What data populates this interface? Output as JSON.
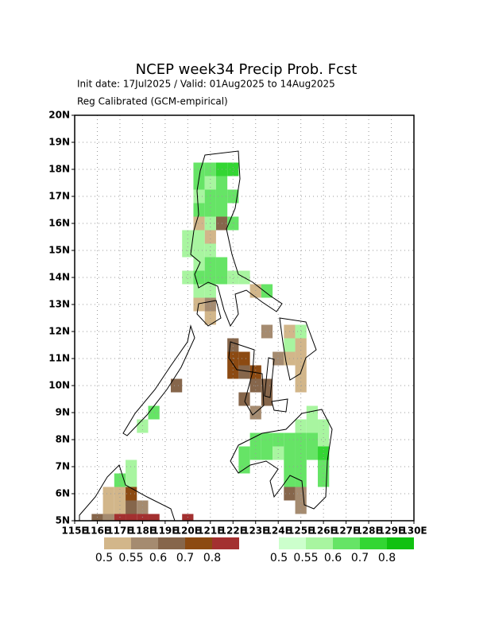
{
  "chart_data": {
    "type": "grid-map",
    "title": "NCEP week34 Precip Prob. Fcst",
    "subtitle": "Init date: 17Jul2025 / Valid: 01Aug2025 to 14Aug2025",
    "note": "Reg Calibrated (GCM-empirical)",
    "xlim": [
      115,
      130
    ],
    "ylim": [
      5,
      20
    ],
    "xticks": [
      {
        "value": 115,
        "label": "115E"
      },
      {
        "value": 116,
        "label": "116E"
      },
      {
        "value": 117,
        "label": "117E"
      },
      {
        "value": 118,
        "label": "118E"
      },
      {
        "value": 119,
        "label": "119E"
      },
      {
        "value": 120,
        "label": "120E"
      },
      {
        "value": 121,
        "label": "121E"
      },
      {
        "value": 122,
        "label": "122E"
      },
      {
        "value": 123,
        "label": "123E"
      },
      {
        "value": 124,
        "label": "124E"
      },
      {
        "value": 125,
        "label": "125E"
      },
      {
        "value": 126,
        "label": "126E"
      },
      {
        "value": 127,
        "label": "127E"
      },
      {
        "value": 128,
        "label": "128E"
      },
      {
        "value": 129,
        "label": "129E"
      },
      {
        "value": 130,
        "label": "130E"
      }
    ],
    "yticks": [
      {
        "value": 5,
        "label": "5N"
      },
      {
        "value": 6,
        "label": "6N"
      },
      {
        "value": 7,
        "label": "7N"
      },
      {
        "value": 8,
        "label": "8N"
      },
      {
        "value": 9,
        "label": "9N"
      },
      {
        "value": 10,
        "label": "10N"
      },
      {
        "value": 11,
        "label": "11N"
      },
      {
        "value": 12,
        "label": "12N"
      },
      {
        "value": 13,
        "label": "13N"
      },
      {
        "value": 14,
        "label": "14N"
      },
      {
        "value": 15,
        "label": "15N"
      },
      {
        "value": 16,
        "label": "16N"
      },
      {
        "value": 17,
        "label": "17N"
      },
      {
        "value": 18,
        "label": "18N"
      },
      {
        "value": 19,
        "label": "19N"
      },
      {
        "value": 20,
        "label": "20N"
      }
    ],
    "grid": true,
    "dry_levels": [
      0.5,
      0.55,
      0.6,
      0.7,
      0.8
    ],
    "dry_colors": [
      "#d2b68a",
      "#a58b70",
      "#86664b",
      "#8c4a12",
      "#a33030"
    ],
    "wet_levels": [
      0.5,
      0.55,
      0.6,
      0.7,
      0.8
    ],
    "wet_colors": [
      "#ccffcc",
      "#a8f5a0",
      "#66e466",
      "#33d633",
      "#11c111"
    ],
    "dry_cells": [
      [
        120.5,
        16,
        0.5
      ],
      [
        121.5,
        16,
        0.6
      ],
      [
        121,
        15.5,
        0.5
      ],
      [
        123,
        13.5,
        0.5
      ],
      [
        120.5,
        13,
        0.5
      ],
      [
        121,
        13,
        0.55
      ],
      [
        121,
        12.5,
        0.5
      ],
      [
        123.5,
        12,
        0.55
      ],
      [
        124.5,
        12,
        0.5
      ],
      [
        122,
        11.5,
        0.6
      ],
      [
        125,
        11.5,
        0.5
      ],
      [
        122,
        11,
        0.7
      ],
      [
        122.5,
        11,
        0.7
      ],
      [
        124,
        11,
        0.55
      ],
      [
        124.5,
        11,
        0.5
      ],
      [
        125,
        11,
        0.5
      ],
      [
        122,
        10.5,
        0.7
      ],
      [
        122.5,
        10.5,
        0.6
      ],
      [
        123,
        10.5,
        0.7
      ],
      [
        125,
        10.5,
        0.5
      ],
      [
        119.5,
        10,
        0.6
      ],
      [
        123,
        10,
        0.6
      ],
      [
        123.5,
        10,
        0.6
      ],
      [
        125,
        10,
        0.5
      ],
      [
        122.5,
        9.5,
        0.6
      ],
      [
        123.5,
        9.5,
        0.6
      ],
      [
        123,
        9,
        0.55
      ],
      [
        116.5,
        6,
        0.5
      ],
      [
        117,
        6,
        0.5
      ],
      [
        117.5,
        6,
        0.7
      ],
      [
        124.5,
        6,
        0.6
      ],
      [
        125,
        6,
        0.55
      ],
      [
        116.5,
        5.5,
        0.5
      ],
      [
        117,
        5.5,
        0.5
      ],
      [
        117.5,
        5.5,
        0.6
      ],
      [
        118,
        5.5,
        0.55
      ],
      [
        125,
        5.5,
        0.55
      ],
      [
        116,
        5,
        0.6
      ],
      [
        116.5,
        5,
        0.55
      ],
      [
        117,
        5,
        0.8
      ],
      [
        117.5,
        5,
        0.8
      ],
      [
        118,
        5,
        0.8
      ],
      [
        118.5,
        5,
        0.8
      ],
      [
        120,
        5,
        0.8
      ]
    ],
    "wet_cells": [
      [
        120.5,
        18,
        0.6
      ],
      [
        121,
        18,
        0.6
      ],
      [
        121.5,
        18,
        0.7
      ],
      [
        122,
        18,
        0.7
      ],
      [
        120.5,
        17.5,
        0.6
      ],
      [
        121,
        17.5,
        0.55
      ],
      [
        121.5,
        17.5,
        0.6
      ],
      [
        120.5,
        17,
        0.55
      ],
      [
        121,
        17,
        0.6
      ],
      [
        121.5,
        17,
        0.6
      ],
      [
        122,
        17,
        0.6
      ],
      [
        120.5,
        16.5,
        0.6
      ],
      [
        121,
        16.5,
        0.6
      ],
      [
        121.5,
        16.5,
        0.6
      ],
      [
        121,
        16,
        0.55
      ],
      [
        122,
        16,
        0.6
      ],
      [
        120,
        15.5,
        0.55
      ],
      [
        120.5,
        15.5,
        0.55
      ],
      [
        120,
        15,
        0.55
      ],
      [
        120.5,
        15,
        0.55
      ],
      [
        121,
        15,
        0.55
      ],
      [
        120.5,
        14.5,
        0.55
      ],
      [
        121,
        14.5,
        0.6
      ],
      [
        121.5,
        14.5,
        0.6
      ],
      [
        120,
        14,
        0.55
      ],
      [
        120.5,
        14,
        0.6
      ],
      [
        121,
        14,
        0.6
      ],
      [
        121.5,
        14,
        0.6
      ],
      [
        122,
        14,
        0.55
      ],
      [
        122.5,
        14,
        0.55
      ],
      [
        120.5,
        13.5,
        0.55
      ],
      [
        121,
        13.5,
        0.55
      ],
      [
        123.5,
        13.5,
        0.6
      ],
      [
        125,
        12,
        0.55
      ],
      [
        124.5,
        11.5,
        0.55
      ],
      [
        118.5,
        9,
        0.6
      ],
      [
        125.5,
        9,
        0.55
      ],
      [
        118,
        8.5,
        0.55
      ],
      [
        125,
        8.5,
        0.55
      ],
      [
        125.5,
        8.5,
        0.55
      ],
      [
        126,
        8.5,
        0.55
      ],
      [
        123,
        8,
        0.6
      ],
      [
        123.5,
        8,
        0.6
      ],
      [
        124,
        8,
        0.6
      ],
      [
        124.5,
        8,
        0.6
      ],
      [
        125,
        8,
        0.6
      ],
      [
        125.5,
        8,
        0.6
      ],
      [
        126,
        8,
        0.55
      ],
      [
        122.5,
        7.5,
        0.6
      ],
      [
        123,
        7.5,
        0.6
      ],
      [
        123.5,
        7.5,
        0.6
      ],
      [
        124,
        7.5,
        0.55
      ],
      [
        124.5,
        7.5,
        0.6
      ],
      [
        125,
        7.5,
        0.6
      ],
      [
        125.5,
        7.5,
        0.6
      ],
      [
        126,
        7.5,
        0.7
      ],
      [
        117.5,
        7,
        0.55
      ],
      [
        122.5,
        7,
        0.6
      ],
      [
        124.5,
        7,
        0.6
      ],
      [
        125,
        7,
        0.6
      ],
      [
        126,
        7,
        0.6
      ],
      [
        117,
        6.5,
        0.6
      ],
      [
        117.5,
        6.5,
        0.55
      ],
      [
        124.5,
        6.5,
        0.6
      ],
      [
        125,
        6.5,
        0.6
      ],
      [
        126,
        6.5,
        0.6
      ]
    ]
  }
}
